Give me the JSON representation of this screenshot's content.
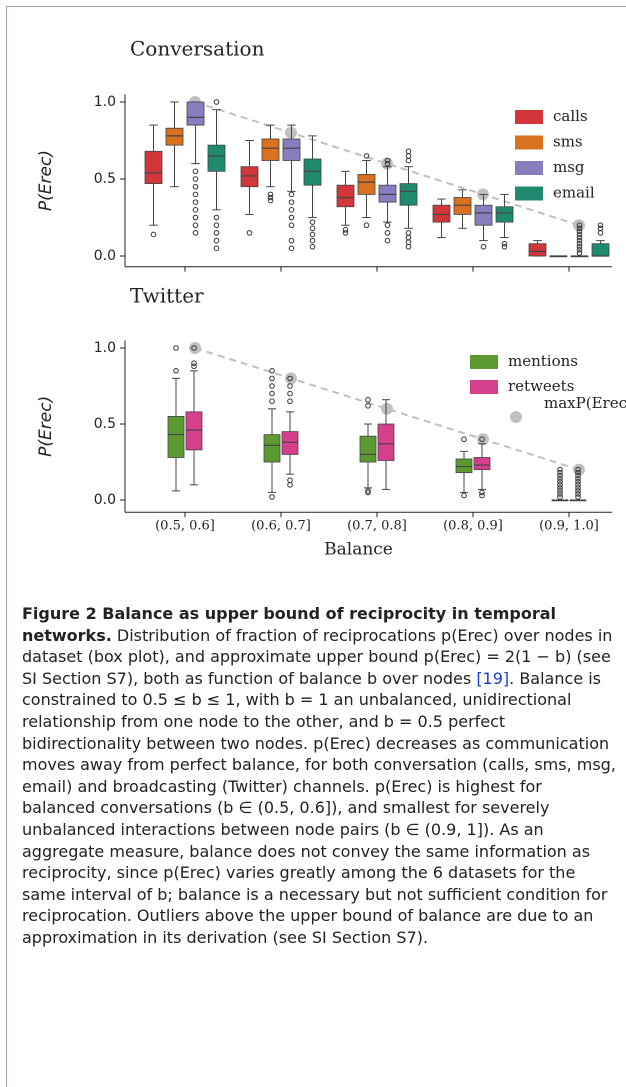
{
  "chart_data": [
    {
      "type": "box",
      "title": "Conversation",
      "ylabel": "P(Erec)",
      "ylim": [
        -0.07,
        1.05
      ],
      "yticks": [
        {
          "value": 0,
          "label": "0.0"
        },
        0.5,
        {
          "value": 1,
          "label": "1.0"
        }
      ],
      "series": [
        {
          "name": "calls",
          "color": "#d3363a",
          "boxes": [
            {
              "whislo": 0.2,
              "q1": 0.47,
              "med": 0.54,
              "q3": 0.68,
              "whishi": 0.85,
              "fliers": [
                0.14
              ]
            },
            {
              "whislo": 0.27,
              "q1": 0.45,
              "med": 0.52,
              "q3": 0.58,
              "whishi": 0.75,
              "fliers": [
                0.15
              ]
            },
            {
              "whislo": 0.2,
              "q1": 0.32,
              "med": 0.38,
              "q3": 0.46,
              "whishi": 0.55,
              "fliers": [
                0.17,
                0.15
              ]
            },
            {
              "whislo": 0.12,
              "q1": 0.22,
              "med": 0.27,
              "q3": 0.33,
              "whishi": 0.37,
              "fliers": []
            },
            {
              "whislo": 0,
              "q1": 0,
              "med": 0.03,
              "q3": 0.08,
              "whishi": 0.1,
              "fliers": []
            }
          ]
        },
        {
          "name": "sms",
          "color": "#d9711f",
          "boxes": [
            {
              "whislo": 0.45,
              "q1": 0.72,
              "med": 0.78,
              "q3": 0.83,
              "whishi": 1.0,
              "fliers": []
            },
            {
              "whislo": 0.45,
              "q1": 0.62,
              "med": 0.7,
              "q3": 0.76,
              "whishi": 0.85,
              "fliers": [
                0.4,
                0.38,
                0.36
              ]
            },
            {
              "whislo": 0.25,
              "q1": 0.4,
              "med": 0.48,
              "q3": 0.53,
              "whishi": 0.62,
              "fliers": [
                0.2,
                0.65
              ]
            },
            {
              "whislo": 0.18,
              "q1": 0.27,
              "med": 0.33,
              "q3": 0.38,
              "whishi": 0.43,
              "fliers": []
            },
            {
              "whislo": 0,
              "q1": 0,
              "med": 0,
              "q3": 0,
              "whishi": 0,
              "fliers": []
            }
          ]
        },
        {
          "name": "msg",
          "color": "#8a7dbf",
          "boxes": [
            {
              "whislo": 0.6,
              "q1": 0.85,
              "med": 0.9,
              "q3": 1.0,
              "whishi": 1.0,
              "fliers": [
                0.55,
                0.5,
                0.45,
                0.4,
                0.35,
                0.3,
                0.25,
                0.2,
                0.15
              ]
            },
            {
              "whislo": 0.42,
              "q1": 0.62,
              "med": 0.7,
              "q3": 0.76,
              "whishi": 0.85,
              "fliers": [
                0.4,
                0.35,
                0.3,
                0.25,
                0.2,
                0.1,
                0.05
              ]
            },
            {
              "whislo": 0.22,
              "q1": 0.35,
              "med": 0.4,
              "q3": 0.46,
              "whishi": 0.58,
              "fliers": [
                0.2,
                0.15,
                0.1,
                0.6,
                0.62
              ]
            },
            {
              "whislo": 0.1,
              "q1": 0.2,
              "med": 0.28,
              "q3": 0.33,
              "whishi": 0.4,
              "fliers": [
                0.06
              ]
            },
            {
              "whislo": 0,
              "q1": 0,
              "med": 0,
              "q3": 0,
              "whishi": 0,
              "fliers": [
                0.02,
                0.04,
                0.06,
                0.08,
                0.1,
                0.12,
                0.14,
                0.16,
                0.18,
                0.2
              ]
            }
          ]
        },
        {
          "name": "email",
          "color": "#1f8a6e",
          "boxes": [
            {
              "whislo": 0.3,
              "q1": 0.55,
              "med": 0.65,
              "q3": 0.72,
              "whishi": 0.95,
              "fliers": [
                0.25,
                0.2,
                0.15,
                0.1,
                0.05,
                1.0
              ]
            },
            {
              "whislo": 0.25,
              "q1": 0.46,
              "med": 0.55,
              "q3": 0.63,
              "whishi": 0.78,
              "fliers": [
                0.22,
                0.18,
                0.14,
                0.1,
                0.06
              ]
            },
            {
              "whislo": 0.18,
              "q1": 0.33,
              "med": 0.42,
              "q3": 0.47,
              "whishi": 0.58,
              "fliers": [
                0.15,
                0.12,
                0.09,
                0.06,
                0.62,
                0.65,
                0.68
              ]
            },
            {
              "whislo": 0.12,
              "q1": 0.22,
              "med": 0.28,
              "q3": 0.32,
              "whishi": 0.4,
              "fliers": [
                0.08,
                0.06
              ]
            },
            {
              "whislo": 0,
              "q1": 0,
              "med": 0,
              "q3": 0.08,
              "whishi": 0.1,
              "fliers": [
                0.15,
                0.18,
                0.2
              ]
            }
          ]
        }
      ],
      "bound": {
        "color": "#c0c0c0",
        "values": [
          1.0,
          0.8,
          0.6,
          0.4,
          0.2
        ]
      }
    },
    {
      "type": "box",
      "title": "Twitter",
      "ylabel": "P(Erec)",
      "xlabel": "Balance",
      "categories": [
        "(0.5, 0.6]",
        "(0.6, 0.7]",
        "(0.7, 0.8]",
        "(0.8, 0.9]",
        "(0.9, 1.0]"
      ],
      "ylim": [
        -0.08,
        1.05
      ],
      "yticks": [
        {
          "value": 0,
          "label": "0.0"
        },
        0.5,
        {
          "value": 1,
          "label": "1.0"
        }
      ],
      "series": [
        {
          "name": "mentions",
          "color": "#5a9a2e",
          "boxes": [
            {
              "whislo": 0.06,
              "q1": 0.28,
              "med": 0.43,
              "q3": 0.55,
              "whishi": 0.8,
              "fliers": [
                0.85,
                1.0
              ]
            },
            {
              "whislo": 0.05,
              "q1": 0.25,
              "med": 0.36,
              "q3": 0.43,
              "whishi": 0.6,
              "fliers": [
                0.02,
                0.65,
                0.7,
                0.75,
                0.8,
                0.85
              ]
            },
            {
              "whislo": 0.08,
              "q1": 0.25,
              "med": 0.3,
              "q3": 0.42,
              "whishi": 0.5,
              "fliers": [
                0.06,
                0.05,
                0.62,
                0.66
              ]
            },
            {
              "whislo": 0.05,
              "q1": 0.18,
              "med": 0.22,
              "q3": 0.27,
              "whishi": 0.32,
              "fliers": [
                0.03,
                0.4
              ]
            },
            {
              "whislo": 0,
              "q1": 0,
              "med": 0,
              "q3": 0,
              "whishi": 0,
              "fliers": [
                0.02,
                0.04,
                0.06,
                0.08,
                0.1,
                0.12,
                0.14,
                0.16,
                0.18,
                0.2
              ]
            }
          ]
        },
        {
          "name": "retweets",
          "color": "#d63f8c",
          "boxes": [
            {
              "whislo": 0.1,
              "q1": 0.33,
              "med": 0.46,
              "q3": 0.58,
              "whishi": 0.85,
              "fliers": [
                0.88,
                0.9,
                1.0
              ]
            },
            {
              "whislo": 0.17,
              "q1": 0.3,
              "med": 0.38,
              "q3": 0.45,
              "whishi": 0.58,
              "fliers": [
                0.13,
                0.1,
                0.65,
                0.7,
                0.75,
                0.8
              ]
            },
            {
              "whislo": 0.07,
              "q1": 0.26,
              "med": 0.37,
              "q3": 0.5,
              "whishi": 0.66,
              "fliers": []
            },
            {
              "whislo": 0.07,
              "q1": 0.2,
              "med": 0.23,
              "q3": 0.28,
              "whishi": 0.37,
              "fliers": [
                0.05,
                0.03,
                0.4
              ]
            },
            {
              "whislo": 0,
              "q1": 0,
              "med": 0,
              "q3": 0,
              "whishi": 0,
              "fliers": [
                0.02,
                0.04,
                0.06,
                0.08,
                0.1,
                0.12,
                0.14,
                0.16,
                0.18,
                0.2
              ]
            }
          ]
        }
      ],
      "bound": {
        "name": "maxP(Erec)",
        "color": "#c0c0c0",
        "values": [
          1.0,
          0.8,
          0.6,
          0.4,
          0.2
        ]
      }
    }
  ],
  "caption": {
    "label": "Figure 2 Balance as upper bound of reciprocity in temporal networks.",
    "text1": " Distribution of fraction of reciprocations p(Erec) over nodes in dataset (box plot), and approximate upper bound p(Erec) = 2(1 − b) (see SI Section S7), both as function of balance b over nodes ",
    "ref": "[19]",
    "text2": ". Balance is constrained to 0.5 ≤ b ≤ 1, with b = 1 an unbalanced, unidirectional relationship from one node to the other, and b = 0.5 perfect bidirectionality between two nodes. p(Erec) decreases as communication moves away from perfect balance, for both conversation (calls, sms, msg, email) and broadcasting (Twitter) channels. p(Erec) is highest for balanced conversations (b ∈ (0.5, 0.6]), and smallest for severely unbalanced interactions between node pairs (b ∈ (0.9, 1]). As an aggregate measure, balance does not convey the same information as reciprocity, since p(Erec) varies greatly among the 6 datasets for the same interval of b; balance is a necessary but not sufficient condition for reciprocation. Outliers above the upper bound of balance are due to an approximation in its derivation (see SI Section S7)."
  }
}
